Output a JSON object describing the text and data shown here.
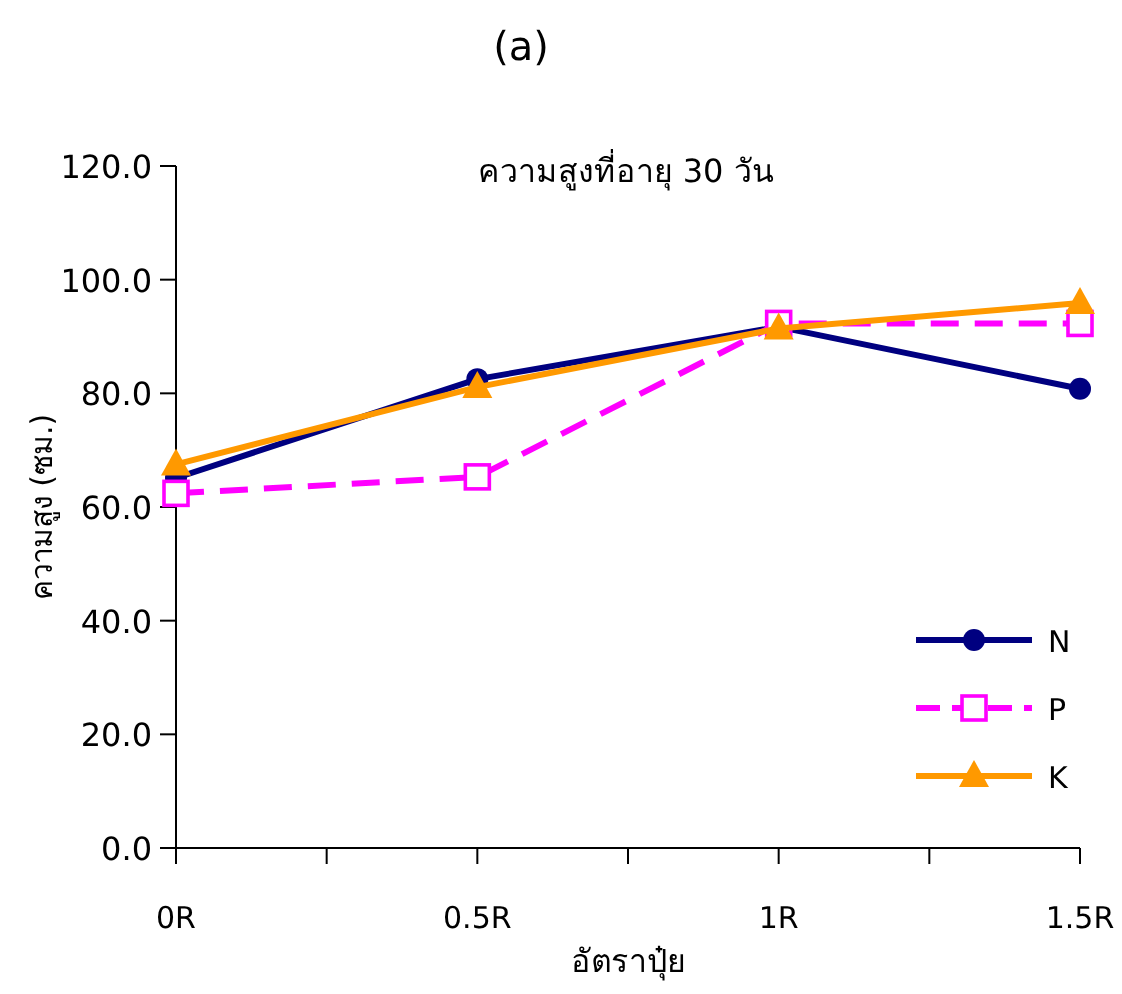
{
  "chart_data": {
    "type": "line",
    "title": "(a)",
    "subtitle": "ความสูงที่อายุ 30 วัน",
    "xlabel": "อัตราปุ๋ย",
    "ylabel": "ความสูง (ซม.)",
    "categories": [
      "0R",
      "0.5R",
      "1R",
      "1.5R"
    ],
    "ylim": [
      0,
      120
    ],
    "yticks": [
      {
        "value": 0,
        "label": "0.0"
      },
      {
        "value": 20,
        "label": "20.0"
      },
      {
        "value": 40,
        "label": "40.0"
      },
      {
        "value": 60,
        "label": "60.0"
      },
      {
        "value": 80,
        "label": "80.0"
      },
      {
        "value": 100,
        "label": "100.0"
      },
      {
        "value": 120,
        "label": "120.0"
      }
    ],
    "grid": false,
    "legend": "bottom right",
    "series": [
      {
        "name": "N",
        "color": "#000080",
        "marker": "circle",
        "line_style": "solid",
        "values": [
          65.1,
          82.5,
          91.7,
          80.8
        ]
      },
      {
        "name": "P",
        "color": "#ff00ff",
        "marker": "square",
        "line_style": "dashed",
        "values": [
          62.4,
          65.3,
          92.3,
          92.3
        ]
      },
      {
        "name": "K",
        "color": "#ff9900",
        "marker": "triangle",
        "line_style": "solid",
        "values": [
          67.5,
          81.1,
          91.4,
          95.9
        ]
      }
    ]
  }
}
